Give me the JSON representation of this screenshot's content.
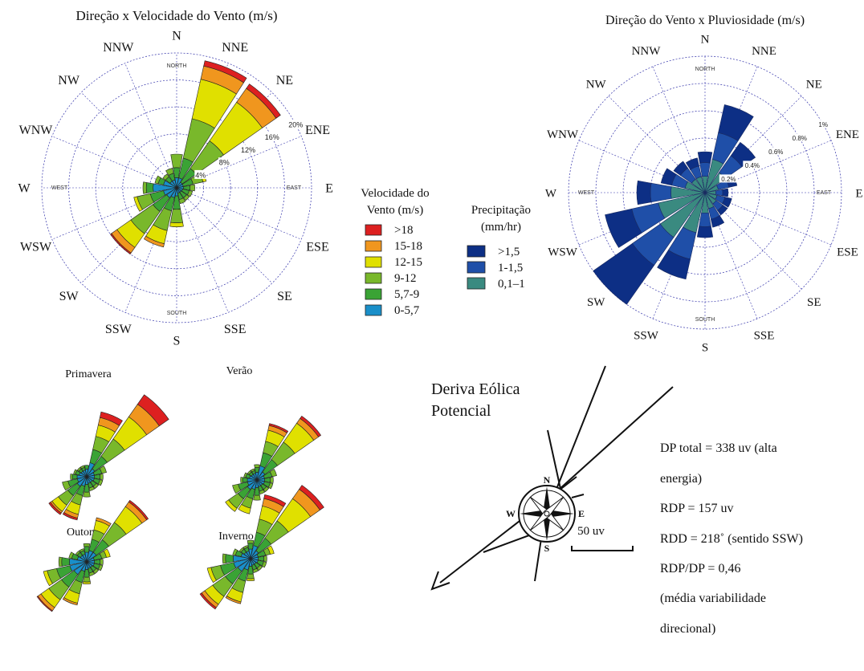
{
  "colors": {
    "speed": [
      "#1a8fc9",
      "#3aa335",
      "#79b82b",
      "#e0e000",
      "#f0961e",
      "#dd2020"
    ],
    "rain": [
      "#3a8a80",
      "#1f4fa8",
      "#0d2f85"
    ],
    "grid": "#3333aa"
  },
  "chart_data": [
    {
      "type": "rose",
      "title": "Direção x Velocidade do Vento (m/s)",
      "directions": [
        "N",
        "NNE",
        "NE",
        "ENE",
        "E",
        "ESE",
        "SE",
        "SSE",
        "S",
        "SSW",
        "SW",
        "WSW",
        "W",
        "WNW",
        "NW",
        "NNW"
      ],
      "cardinal_tags": [
        "NORTH",
        "EAST",
        "SOUTH",
        "WEST"
      ],
      "ring_labels": [
        "4%",
        "8%",
        "12%",
        "16%",
        "20%"
      ],
      "rmax": 20,
      "legend_title": [
        "Velocidade do",
        "Vento (m/s)"
      ],
      "legend_items": [
        ">18",
        "15-18",
        "12-15",
        "9-12",
        "5,7-9",
        "0-5,7"
      ],
      "series_bins": [
        "0-5,7",
        "5,7-9",
        "9-12",
        "12-15",
        "15-18",
        ">18"
      ],
      "frequency": [
        [
          1.5,
          1.5,
          2.0,
          0.0,
          0.0,
          0.0
        ],
        [
          1.5,
          3.0,
          6.0,
          6.0,
          2.0,
          0.8
        ],
        [
          1.0,
          2.5,
          5.0,
          7.0,
          2.5,
          0.8
        ],
        [
          1.0,
          1.5,
          1.5,
          0.5,
          0.0,
          0.0
        ],
        [
          1.0,
          1.0,
          0.7,
          0.0,
          0.0,
          0.0
        ],
        [
          0.9,
          1.0,
          0.5,
          0.0,
          0.0,
          0.0
        ],
        [
          0.8,
          1.0,
          0.5,
          0.0,
          0.0,
          0.0
        ],
        [
          0.8,
          1.0,
          0.6,
          0.0,
          0.0,
          0.0
        ],
        [
          1.2,
          2.0,
          2.0,
          0.6,
          0.0,
          0.0
        ],
        [
          1.5,
          2.0,
          3.0,
          2.0,
          0.5,
          0.0
        ],
        [
          1.8,
          2.5,
          4.0,
          2.5,
          1.0,
          0.2
        ],
        [
          2.0,
          2.0,
          2.0,
          0.5,
          0.0,
          0.0
        ],
        [
          3.5,
          1.0,
          0.5,
          0.0,
          0.0,
          0.0
        ],
        [
          2.0,
          0.8,
          0.5,
          0.0,
          0.0,
          0.0
        ],
        [
          1.2,
          0.8,
          0.5,
          0.0,
          0.0,
          0.0
        ],
        [
          1.2,
          1.0,
          0.8,
          0.0,
          0.0,
          0.0
        ]
      ]
    },
    {
      "type": "rose",
      "title": "Direção do Vento x Pluviosidade (m/s)",
      "directions": [
        "N",
        "NNE",
        "NE",
        "ENE",
        "E",
        "ESE",
        "SE",
        "SSE",
        "S",
        "SSW",
        "SW",
        "WSW",
        "W",
        "WNW",
        "NW",
        "NNW"
      ],
      "cardinal_tags": [
        "NORTH",
        "EAST",
        "SOUTH",
        "WEST"
      ],
      "ring_labels": [
        "0.2%",
        "0.4%",
        "0.6%",
        "0.8%",
        "1%"
      ],
      "rmax": 1.0,
      "legend_title": [
        "Precipitação",
        "(mm/hr)"
      ],
      "legend_items": [
        ">1,5",
        "1-1,5",
        "0,1–1"
      ],
      "series_bins": [
        "0,1–1",
        "1-1,5",
        ">1,5"
      ],
      "frequency": [
        [
          0.12,
          0.1,
          0.08
        ],
        [
          0.25,
          0.2,
          0.21
        ],
        [
          0.18,
          0.15,
          0.12
        ],
        [
          0.1,
          0.08,
          0.06
        ],
        [
          0.08,
          0.05,
          0.04
        ],
        [
          0.09,
          0.06,
          0.05
        ],
        [
          0.1,
          0.06,
          0.04
        ],
        [
          0.12,
          0.08,
          0.06
        ],
        [
          0.15,
          0.1,
          0.08
        ],
        [
          0.3,
          0.2,
          0.15
        ],
        [
          0.4,
          0.25,
          0.35
        ],
        [
          0.35,
          0.2,
          0.2
        ],
        [
          0.25,
          0.15,
          0.1
        ],
        [
          0.15,
          0.1,
          0.08
        ],
        [
          0.12,
          0.1,
          0.06
        ],
        [
          0.12,
          0.08,
          0.06
        ]
      ]
    },
    {
      "type": "rose",
      "title": "Primavera",
      "series_bins": [
        "0-5,7",
        "5,7-9",
        "9-12",
        "12-15",
        "15-18",
        ">18"
      ],
      "frequency": [
        [
          0.8,
          0.4,
          0,
          0,
          0,
          0
        ],
        [
          1.5,
          1.4,
          1.4,
          1.2,
          0.8,
          0.6
        ],
        [
          1.0,
          1.6,
          2.2,
          2.8,
          1.6,
          1.2
        ],
        [
          0.8,
          0.8,
          0.5,
          0,
          0,
          0
        ],
        [
          0.8,
          0.6,
          0.3,
          0,
          0,
          0
        ],
        [
          0.8,
          0.6,
          0.3,
          0,
          0,
          0
        ],
        [
          0.7,
          0.5,
          0.3,
          0,
          0,
          0
        ],
        [
          0.7,
          0.5,
          0.3,
          0,
          0,
          0
        ],
        [
          0.8,
          0.8,
          0.5,
          0,
          0,
          0
        ],
        [
          1.0,
          1.0,
          1.0,
          1.0,
          0.4,
          0.2
        ],
        [
          1.2,
          1.2,
          1.2,
          0.8,
          0.2,
          0.2
        ],
        [
          1.0,
          1.0,
          0.6,
          0,
          0,
          0
        ],
        [
          1.0,
          0.5,
          0.2,
          0,
          0,
          0
        ],
        [
          0.8,
          0.4,
          0.2,
          0,
          0,
          0
        ],
        [
          0.7,
          0.3,
          0.2,
          0,
          0,
          0
        ],
        [
          0.7,
          0.3,
          0.2,
          0,
          0,
          0
        ]
      ]
    },
    {
      "type": "rose",
      "title": "Verão",
      "series_bins": [
        "0-5,7",
        "5,7-9",
        "9-12",
        "12-15",
        "15-18",
        ">18"
      ],
      "frequency": [
        [
          0.8,
          0.5,
          0.3,
          0,
          0,
          0
        ],
        [
          1.5,
          1.4,
          1.2,
          1.2,
          0.5,
          0.2
        ],
        [
          1.0,
          1.6,
          2.2,
          2.4,
          0.6,
          0.3
        ],
        [
          0.8,
          0.8,
          0.5,
          0,
          0,
          0
        ],
        [
          0.8,
          0.6,
          0.3,
          0,
          0,
          0
        ],
        [
          0.8,
          0.6,
          0.3,
          0,
          0,
          0
        ],
        [
          0.7,
          0.5,
          0.3,
          0,
          0,
          0
        ],
        [
          0.7,
          0.5,
          0.3,
          0,
          0,
          0
        ],
        [
          0.8,
          0.8,
          0.5,
          0,
          0,
          0
        ],
        [
          1.0,
          1.0,
          1.0,
          0.6,
          0,
          0
        ],
        [
          1.2,
          1.2,
          1.2,
          0.4,
          0,
          0
        ],
        [
          1.0,
          1.0,
          0.6,
          0,
          0,
          0
        ],
        [
          1.0,
          0.5,
          0.2,
          0,
          0,
          0
        ],
        [
          0.8,
          0.4,
          0.2,
          0,
          0,
          0
        ],
        [
          0.7,
          0.3,
          0.2,
          0,
          0,
          0
        ],
        [
          0.7,
          0.3,
          0.2,
          0,
          0,
          0
        ]
      ]
    },
    {
      "type": "rose",
      "title": "Outono",
      "series_bins": [
        "0-5,7",
        "5,7-9",
        "9-12",
        "12-15",
        "15-18",
        ">18"
      ],
      "frequency": [
        [
          1.0,
          0.6,
          0.3,
          0,
          0,
          0
        ],
        [
          1.2,
          1.2,
          1.0,
          1.0,
          0.3,
          0
        ],
        [
          1.2,
          1.6,
          2.2,
          2.0,
          0.6,
          0.2
        ],
        [
          0.8,
          0.8,
          0.5,
          0.4,
          0,
          0
        ],
        [
          0.8,
          0.6,
          0.3,
          0,
          0,
          0
        ],
        [
          0.8,
          0.6,
          0.3,
          0,
          0,
          0
        ],
        [
          0.7,
          0.5,
          0.3,
          0,
          0,
          0
        ],
        [
          0.7,
          0.5,
          0.3,
          0,
          0,
          0
        ],
        [
          0.8,
          0.8,
          0.5,
          0.2,
          0,
          0
        ],
        [
          1.0,
          1.2,
          1.2,
          1.0,
          0.2,
          0
        ],
        [
          1.6,
          1.6,
          1.6,
          1.0,
          0.4,
          0.1
        ],
        [
          1.8,
          1.4,
          1.0,
          0.4,
          0,
          0
        ],
        [
          1.8,
          0.8,
          0.3,
          0,
          0,
          0
        ],
        [
          1.0,
          0.6,
          0.3,
          0,
          0,
          0
        ],
        [
          0.8,
          0.4,
          0.2,
          0,
          0,
          0
        ],
        [
          0.8,
          0.4,
          0.2,
          0,
          0,
          0
        ]
      ]
    },
    {
      "type": "rose",
      "title": "Inverno",
      "series_bins": [
        "0-5,7",
        "5,7-9",
        "9-12",
        "12-15",
        "15-18",
        ">18"
      ],
      "frequency": [
        [
          1.0,
          0.6,
          0.3,
          0,
          0,
          0
        ],
        [
          1.4,
          1.4,
          1.4,
          1.4,
          0.8,
          0.4
        ],
        [
          1.0,
          1.6,
          2.2,
          2.8,
          1.2,
          0.5
        ],
        [
          0.8,
          0.8,
          0.5,
          0.4,
          0,
          0
        ],
        [
          0.8,
          0.6,
          0.3,
          0,
          0,
          0
        ],
        [
          0.8,
          0.6,
          0.3,
          0,
          0,
          0
        ],
        [
          0.7,
          0.5,
          0.3,
          0,
          0,
          0
        ],
        [
          0.7,
          0.5,
          0.3,
          0,
          0,
          0
        ],
        [
          0.8,
          0.8,
          0.5,
          0.2,
          0,
          0
        ],
        [
          1.2,
          1.2,
          1.2,
          1.0,
          0.2,
          0
        ],
        [
          1.6,
          1.6,
          1.6,
          1.0,
          0.4,
          0.2
        ],
        [
          1.8,
          1.4,
          1.0,
          0.4,
          0,
          0
        ],
        [
          1.8,
          0.8,
          0.3,
          0,
          0,
          0
        ],
        [
          1.0,
          0.6,
          0.3,
          0,
          0,
          0
        ],
        [
          0.8,
          0.4,
          0.2,
          0,
          0,
          0
        ],
        [
          0.8,
          0.4,
          0.2,
          0,
          0,
          0
        ]
      ]
    }
  ],
  "deriva": {
    "title_line1": "Deriva Eólica",
    "title_line2": "Potencial",
    "compass_letters": [
      "N",
      "E",
      "S",
      "W"
    ],
    "scale_label": "50 uv",
    "stats": [
      "DP total = 338 uv (alta",
      "energia)",
      "RDP = 157 uv",
      "RDD = 218˚ (sentido SSW)",
      "RDP/DP = 0,46",
      "(média variabilidade",
      "direcional)"
    ]
  }
}
